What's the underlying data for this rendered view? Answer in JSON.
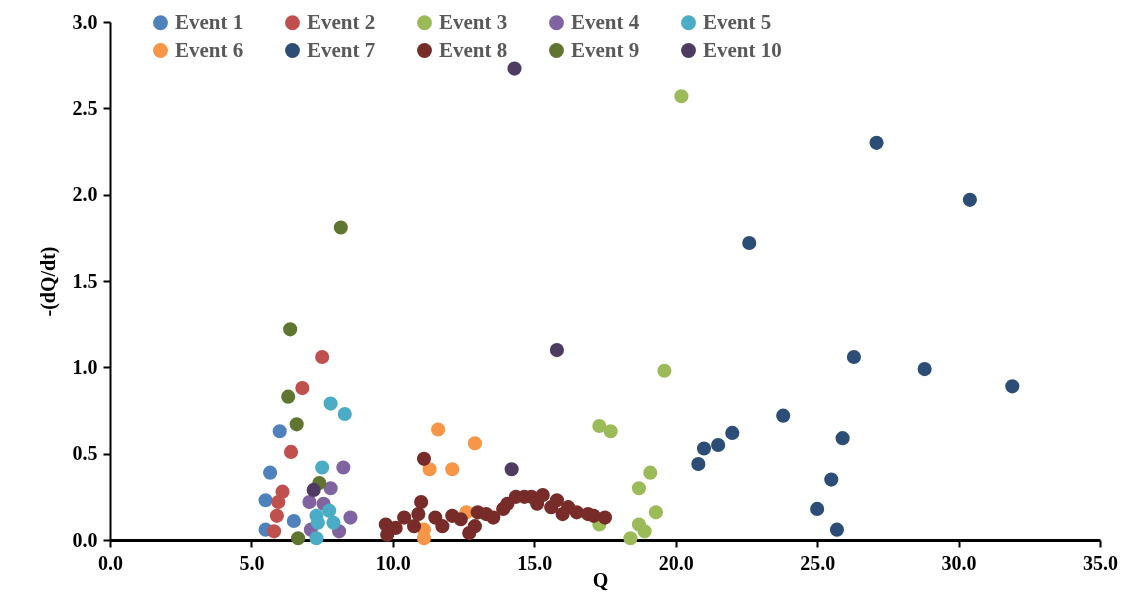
{
  "chart_data": {
    "type": "scatter",
    "xlabel": "Q",
    "ylabel": "-(dQ/dt)",
    "legend": "top",
    "marker": "circle",
    "xlim": [
      0,
      35
    ],
    "xticks": [
      {
        "value": 0,
        "label": "0.0"
      },
      {
        "value": 5,
        "label": "5.0"
      },
      {
        "value": 10,
        "label": "10.0"
      },
      {
        "value": 15,
        "label": "15.0"
      },
      {
        "value": 20,
        "label": "20.0"
      },
      {
        "value": 25,
        "label": "25.0"
      },
      {
        "value": 30,
        "label": "30.0"
      },
      {
        "value": 35,
        "label": "35.0"
      }
    ],
    "ylim": [
      0,
      3
    ],
    "yticks": [
      {
        "value": 0,
        "label": "0.0"
      },
      0.5,
      {
        "value": 1,
        "label": "1.0"
      },
      1.5,
      {
        "value": 2,
        "label": "2.0"
      },
      2.5,
      {
        "value": 3,
        "label": "3.0"
      }
    ],
    "series": [
      {
        "name": "Event 1",
        "color": "#4f81bd",
        "x": [
          6.0,
          5.66,
          5.5,
          5.5,
          6.5
        ],
        "values": [
          0.63,
          0.39,
          0.23,
          0.06,
          0.11
        ]
      },
      {
        "name": "Event 2",
        "color": "#c0504d",
        "x": [
          7.5,
          6.8,
          6.4,
          6.1,
          5.95,
          5.9,
          5.8
        ],
        "values": [
          1.06,
          0.88,
          0.51,
          0.28,
          0.22,
          0.14,
          0.05
        ]
      },
      {
        "name": "Event 3",
        "color": "#9bbb59",
        "x": [
          20.2,
          19.6,
          17.3,
          17.7,
          19.1,
          18.7,
          19.3,
          18.7,
          18.9,
          18.4,
          17.3
        ],
        "values": [
          2.57,
          0.98,
          0.66,
          0.63,
          0.39,
          0.3,
          0.16,
          0.09,
          0.05,
          0.01,
          0.09
        ]
      },
      {
        "name": "Event 4",
        "color": "#8064a2",
        "x": [
          8.25,
          7.8,
          7.05,
          7.55,
          8.5,
          8.1,
          7.1
        ],
        "values": [
          0.42,
          0.3,
          0.22,
          0.21,
          0.13,
          0.05,
          0.06
        ]
      },
      {
        "name": "Event 5",
        "color": "#4bacc6",
        "x": [
          7.8,
          8.3,
          7.5,
          7.75,
          7.3,
          7.9,
          7.35,
          7.3
        ],
        "values": [
          0.79,
          0.73,
          0.42,
          0.17,
          0.14,
          0.1,
          0.1,
          0.01
        ]
      },
      {
        "name": "Event 6",
        "color": "#f79646",
        "x": [
          11.6,
          12.9,
          11.3,
          12.1,
          12.6,
          11.1,
          11.1
        ],
        "values": [
          0.64,
          0.56,
          0.41,
          0.41,
          0.16,
          0.06,
          0.01
        ]
      },
      {
        "name": "Event 7",
        "color": "#2c4d75",
        "x": [
          27.1,
          30.4,
          22.6,
          26.3,
          28.8,
          31.9,
          23.8,
          22.0,
          21.5,
          21.0,
          20.8,
          25.9,
          25.5,
          25.0,
          25.7
        ],
        "values": [
          2.3,
          1.97,
          1.72,
          1.06,
          0.99,
          0.89,
          0.72,
          0.62,
          0.55,
          0.53,
          0.44,
          0.59,
          0.35,
          0.18,
          0.06
        ]
      },
      {
        "name": "Event 8",
        "color": "#772c2a",
        "x": [
          11.1,
          9.75,
          9.8,
          10.1,
          10.4,
          10.75,
          10.9,
          11.0,
          11.5,
          11.75,
          12.1,
          12.4,
          12.7,
          12.9,
          13.0,
          13.3,
          13.55,
          13.9,
          14.05,
          14.35,
          14.65,
          14.9,
          15.1,
          15.3,
          15.6,
          15.8,
          16.0,
          16.2,
          16.5,
          16.9,
          17.1,
          17.5
        ],
        "values": [
          0.47,
          0.09,
          0.03,
          0.07,
          0.13,
          0.08,
          0.15,
          0.22,
          0.13,
          0.08,
          0.14,
          0.12,
          0.04,
          0.08,
          0.16,
          0.15,
          0.13,
          0.18,
          0.21,
          0.25,
          0.25,
          0.25,
          0.21,
          0.26,
          0.19,
          0.23,
          0.15,
          0.19,
          0.16,
          0.15,
          0.14,
          0.13
        ]
      },
      {
        "name": "Event 9",
        "color": "#5f7530",
        "x": [
          8.16,
          6.37,
          6.3,
          6.6,
          7.4,
          6.65
        ],
        "values": [
          1.81,
          1.22,
          0.83,
          0.67,
          0.33,
          0.01
        ]
      },
      {
        "name": "Event 10",
        "color": "#4d3b62",
        "x": [
          14.3,
          15.8,
          14.2,
          7.2
        ],
        "values": [
          2.73,
          1.1,
          0.41,
          0.29
        ]
      }
    ]
  }
}
